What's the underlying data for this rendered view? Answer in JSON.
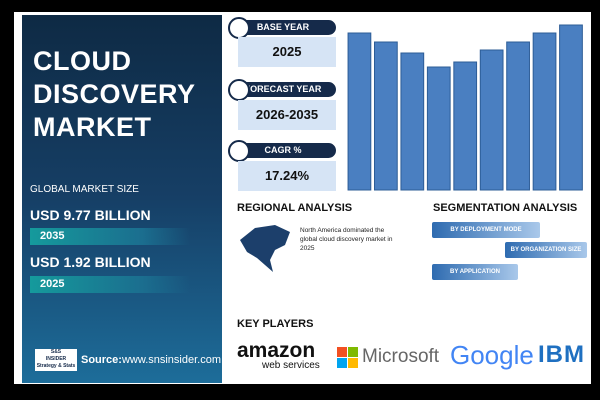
{
  "title_lines": [
    "CLOUD",
    "DISCOVERY",
    "MARKET"
  ],
  "market_size": {
    "label": "GLOBAL MARKET SIZE",
    "items": [
      {
        "value": "USD 9.77 BILLION",
        "year": "2035"
      },
      {
        "value": "USD 1.92 BILLION",
        "year": "2025"
      }
    ]
  },
  "logo": {
    "line1": "S&S",
    "line2": "INSIDER",
    "line3": "Strategy & Stats"
  },
  "source": {
    "label": "Source:",
    "url": "www.snsinsider.com"
  },
  "cards": [
    {
      "label": "BASE YEAR",
      "value": "2025"
    },
    {
      "label": "FORECAST YEAR",
      "value": "2026-2035"
    },
    {
      "label": "CAGR %",
      "value": "17.24%"
    }
  ],
  "chart_data": {
    "type": "bar",
    "values": [
      157,
      148,
      137,
      123,
      128,
      140,
      148,
      157,
      165
    ],
    "ylim": [
      0,
      170
    ],
    "color": "#4a7fc1"
  },
  "regional": {
    "title": "REGIONAL ANALYSIS",
    "text": "North America dominated the global cloud discovery market in 2025"
  },
  "segmentation": {
    "title": "SEGMENTATION ANALYSIS",
    "items": [
      "BY DEPLOYMENT MODE",
      "BY ORGANIZATION SIZE",
      "BY APPLICATION"
    ]
  },
  "key_players": {
    "title": "KEY PLAYERS",
    "amazon": "amazon",
    "amazon_sub": "web services",
    "microsoft": "Microsoft",
    "google": "Google",
    "ibm": "IBM"
  }
}
